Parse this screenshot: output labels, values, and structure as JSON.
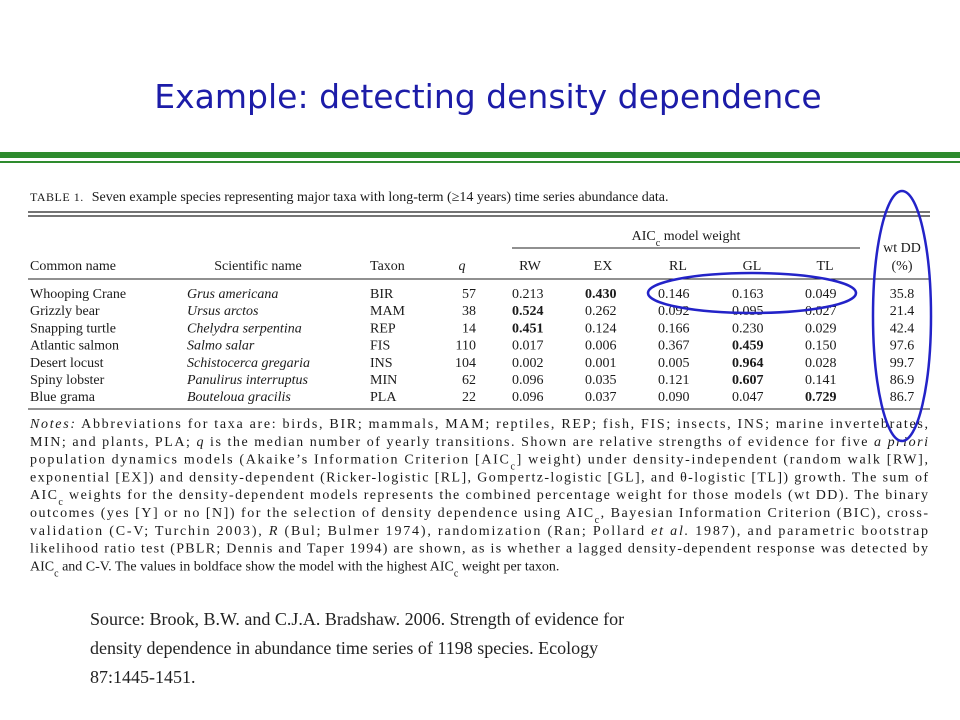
{
  "title": "Example:  detecting density dependence",
  "table": {
    "caption": [
      "TABLE 1.",
      "Seven example species representing major taxa with long-term (≥14 years) time series abundance data."
    ],
    "group_header": [
      "AIC",
      {
        "sub": "c"
      },
      " model weight"
    ],
    "columns": [
      "Common name",
      "Scientific name",
      "Taxon",
      "q",
      "RW",
      "EX",
      "RL",
      "GL",
      "TL",
      "wt DD",
      "(%)"
    ],
    "rows": [
      {
        "cells": [
          "Whooping Crane",
          "Grus americana",
          "BIR",
          "57",
          "0.213",
          "0.430",
          "0.146",
          "0.163",
          "0.049",
          "35.8"
        ],
        "bold": 5
      },
      {
        "cells": [
          "Grizzly bear",
          "Ursus arctos",
          "MAM",
          "38",
          "0.524",
          "0.262",
          "0.092",
          "0.095",
          "0.027",
          "21.4"
        ],
        "bold": 4
      },
      {
        "cells": [
          "Snapping turtle",
          "Chelydra serpentina",
          "REP",
          "14",
          "0.451",
          "0.124",
          "0.166",
          "0.230",
          "0.029",
          "42.4"
        ],
        "bold": 4
      },
      {
        "cells": [
          "Atlantic salmon",
          "Salmo salar",
          "FIS",
          "110",
          "0.017",
          "0.006",
          "0.367",
          "0.459",
          "0.150",
          "97.6"
        ],
        "bold": 7
      },
      {
        "cells": [
          "Desert locust",
          "Schistocerca gregaria",
          "INS",
          "104",
          "0.002",
          "0.001",
          "0.005",
          "0.964",
          "0.028",
          "99.7"
        ],
        "bold": 7
      },
      {
        "cells": [
          "Spiny lobster",
          "Panulirus interruptus",
          "MIN",
          "62",
          "0.096",
          "0.035",
          "0.121",
          "0.607",
          "0.141",
          "86.9"
        ],
        "bold": 7
      },
      {
        "cells": [
          "Blue grama",
          "Bouteloua gracilis",
          "PLA",
          "22",
          "0.096",
          "0.037",
          "0.090",
          "0.047",
          "0.729",
          "86.7"
        ],
        "bold": 8
      }
    ],
    "notes": [
      [
        {
          "i": "Notes:"
        },
        " Abbreviations for taxa are: birds, BIR; mammals, MAM; reptiles, REP; fish, FIS; insects, INS; marine invertebrates,"
      ],
      [
        "MIN; and plants, PLA; ",
        {
          "i": "q"
        },
        " is the median number of yearly transitions. Shown are relative strengths of evidence for five ",
        {
          "i": "a priori"
        }
      ],
      [
        "population dynamics models (Akaike’s Information Criterion [AIC",
        {
          "sub": "c"
        },
        "] weight) under density-independent (random walk [RW],"
      ],
      [
        "exponential [EX]) and density-dependent (Ricker-logistic [RL], Gompertz-logistic [GL], and θ-logistic [TL]) growth. The sum of"
      ],
      [
        "AIC",
        {
          "sub": "c"
        },
        " weights for the density-dependent models represents the combined percentage weight for those models (wt DD). The binary"
      ],
      [
        "outcomes (yes [Y] or no [N]) for the selection of density dependence using AIC",
        {
          "sub": "c"
        },
        ", Bayesian Information Criterion (BIC), cross-"
      ],
      [
        "validation (C-V; Turchin 2003), ",
        {
          "i": "R"
        },
        " (Bul; Bulmer 1974), randomization (Ran; Pollard ",
        {
          "i": "et al."
        },
        " 1987), and parametric bootstrap"
      ],
      [
        "likelihood ratio test (PBLR; Dennis and Taper 1994) are shown, as is whether a lagged density-dependent response was detected by"
      ],
      [
        "AIC",
        {
          "sub": "c"
        },
        " and C-V. The values in boldface show the model with the highest AIC",
        {
          "sub": "c"
        },
        " weight per taxon."
      ]
    ]
  },
  "source": [
    "Source:  Brook, B.W. and C.J.A. Bradshaw.  2006.  Strength of evidence for",
    "density dependence in abundance time series of 1198 species.  Ecology",
    "87:1445-1451."
  ]
}
